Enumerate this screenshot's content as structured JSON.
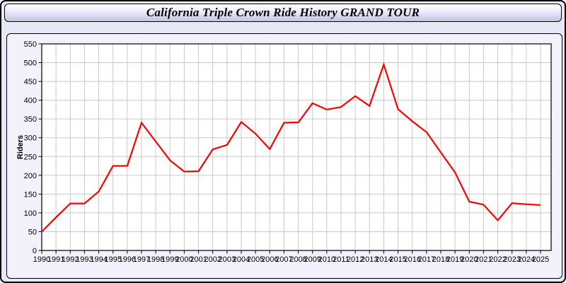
{
  "header": {
    "title": "California Triple Crown Ride History GRAND TOUR"
  },
  "chart_data": {
    "type": "line",
    "title": "California Triple Crown Ride History GRAND TOUR",
    "xlabel": "",
    "ylabel": "Riders",
    "x": [
      1990,
      1991,
      1992,
      1993,
      1994,
      1995,
      1996,
      1997,
      1998,
      1999,
      2000,
      2001,
      2002,
      2003,
      2004,
      2005,
      2006,
      2007,
      2008,
      2009,
      2010,
      2011,
      2012,
      2013,
      2014,
      2015,
      2016,
      2017,
      2018,
      2019,
      2020,
      2021,
      2022,
      2023,
      2024,
      2025
    ],
    "series": [
      {
        "name": "Riders",
        "color": "#FF0000",
        "values": [
          50,
          88,
          125,
          125,
          157,
          225,
          225,
          340,
          290,
          240,
          210,
          211,
          269,
          281,
          342,
          311,
          270,
          340,
          341,
          392,
          375,
          382,
          411,
          385,
          495,
          376,
          344,
          315,
          261,
          208,
          130,
          122,
          80,
          126,
          123,
          121
        ]
      }
    ],
    "ylim": [
      0,
      550
    ],
    "y_tick_step": 50,
    "grid": true,
    "legend_position": "none",
    "colors": {
      "line": "#FF0000",
      "grid": "#C9C9C9",
      "plot_background": "#FFFFFF",
      "panel_background": "#F2F2FC",
      "window_background": "#E7E7F6"
    }
  }
}
